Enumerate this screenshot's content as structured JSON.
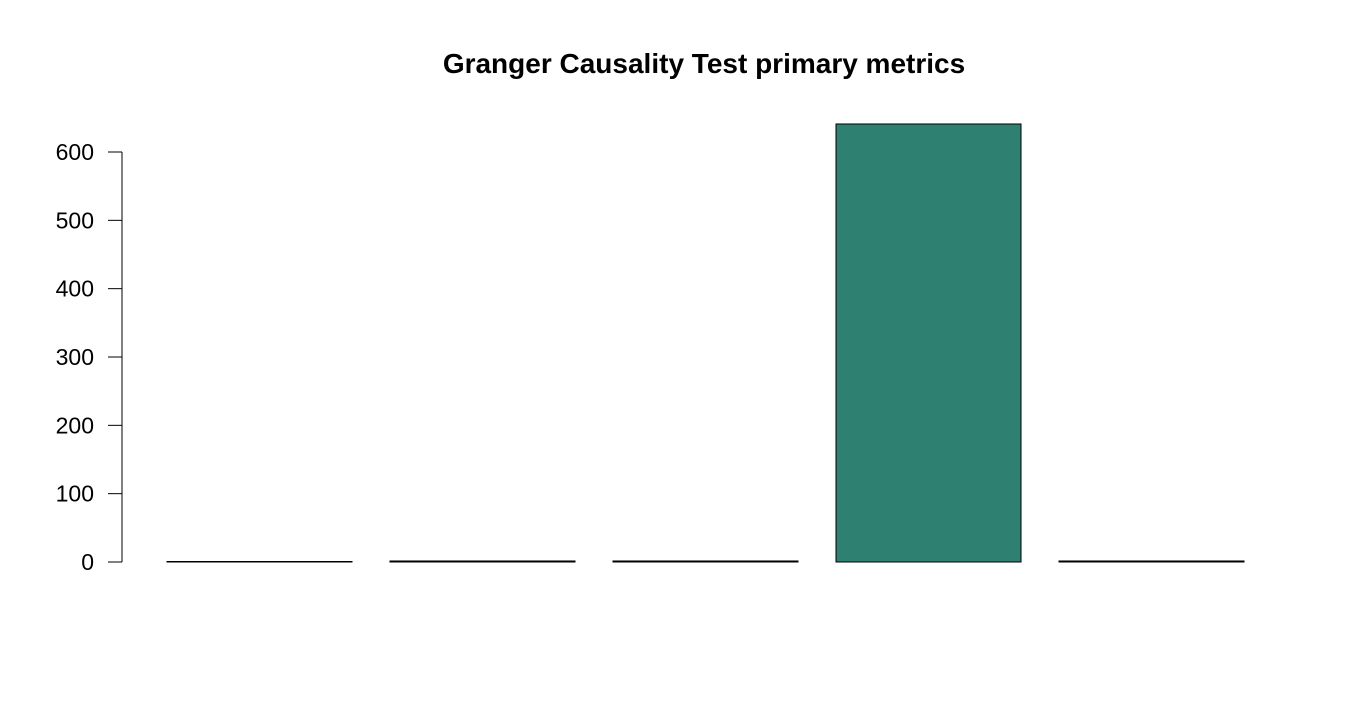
{
  "chart_data": {
    "type": "bar",
    "title": "Granger Causality Test primary metrics",
    "xlabel": "",
    "ylabel": "",
    "categories": [
      "",
      "",
      "",
      "",
      ""
    ],
    "values": [
      0,
      1.5,
      1.5,
      641,
      1.5
    ],
    "ylim": [
      0,
      600
    ],
    "yticks": [
      0,
      100,
      200,
      300,
      400,
      500,
      600
    ],
    "grid": false,
    "legend": "none",
    "bar_color": "#2e8170",
    "bar_border_color": "#000000"
  }
}
